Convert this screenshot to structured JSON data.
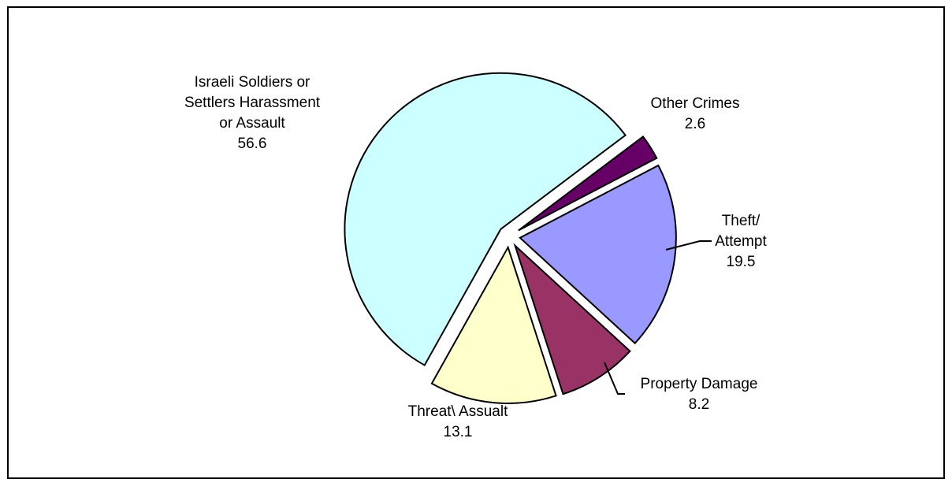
{
  "chart_data": {
    "type": "pie",
    "title": "",
    "legend": "none",
    "slices": [
      {
        "label": "Other Crimes",
        "label_lines": [
          "Other Crimes"
        ],
        "value": 2.6,
        "value_label": "2.6",
        "color": "#660066"
      },
      {
        "label": "Theft/ Attempt",
        "label_lines": [
          "Theft/",
          "Attempt"
        ],
        "value": 19.5,
        "value_label": "19.5",
        "color": "#9999ff"
      },
      {
        "label": "Property Damage",
        "label_lines": [
          "Property Damage"
        ],
        "value": 8.2,
        "value_label": "8.2",
        "color": "#993366"
      },
      {
        "label": "Threat\\ Assualt",
        "label_lines": [
          "Threat\\ Assualt"
        ],
        "value": 13.1,
        "value_label": "13.1",
        "color": "#ffffcc"
      },
      {
        "label": "Israeli Soldiers or Settlers Harassment or Assault",
        "label_lines": [
          "Israeli Soldiers or",
          "Settlers Harassment",
          "or Assault"
        ],
        "value": 56.6,
        "value_label": "56.6",
        "color": "#ccffff"
      }
    ]
  }
}
